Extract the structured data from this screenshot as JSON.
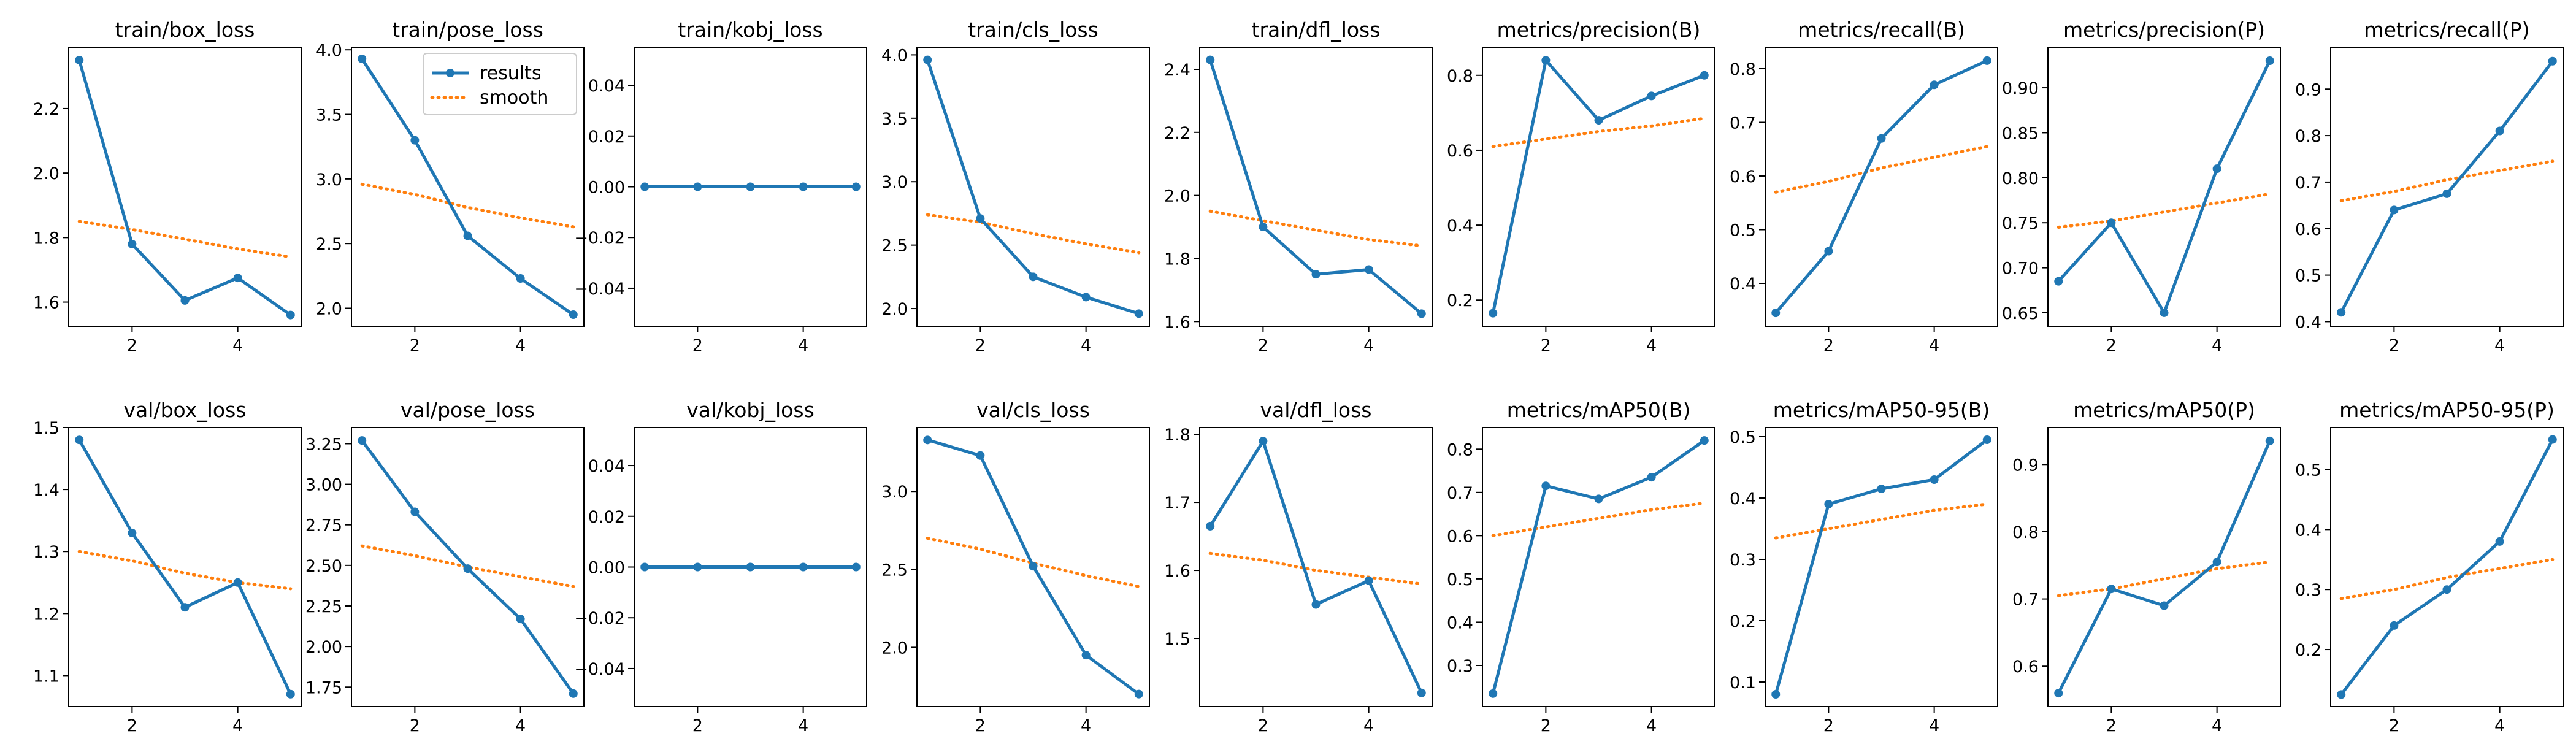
{
  "colors": {
    "results": "#1f77b4",
    "smooth": "#ff7f0e"
  },
  "legend": {
    "results": "results",
    "smooth": "smooth",
    "placement": "top-right",
    "panel": "train/pose_loss"
  },
  "chart_data": [
    {
      "type": "line",
      "title": "train/box_loss",
      "x": [
        1,
        2,
        3,
        4,
        5
      ],
      "series": [
        {
          "name": "results",
          "values": [
            2.35,
            1.78,
            1.605,
            1.675,
            1.56
          ]
        },
        {
          "name": "smooth",
          "values": [
            1.85,
            1.825,
            1.795,
            1.765,
            1.74
          ]
        }
      ],
      "xlim": [
        0.8,
        5.2
      ],
      "ylim": [
        1.525,
        2.39
      ],
      "xticks": [
        2,
        4
      ],
      "yticks": [
        1.6,
        1.8,
        2.0,
        2.2
      ],
      "yticklabels": [
        "1.6",
        "1.8",
        "2.0",
        "2.2"
      ],
      "grid": false
    },
    {
      "type": "line",
      "title": "train/pose_loss",
      "x": [
        1,
        2,
        3,
        4,
        5
      ],
      "series": [
        {
          "name": "results",
          "values": [
            3.93,
            3.3,
            2.56,
            2.23,
            1.95
          ]
        },
        {
          "name": "smooth",
          "values": [
            2.96,
            2.88,
            2.78,
            2.7,
            2.63
          ]
        }
      ],
      "xlim": [
        0.8,
        5.2
      ],
      "ylim": [
        1.86,
        4.02
      ],
      "xticks": [
        2,
        4
      ],
      "yticks": [
        2.0,
        2.5,
        3.0,
        3.5,
        4.0
      ],
      "yticklabels": [
        "2.0",
        "2.5",
        "3.0",
        "3.5",
        "4.0"
      ],
      "grid": false
    },
    {
      "type": "line",
      "title": "train/kobj_loss",
      "x": [
        1,
        2,
        3,
        4,
        5
      ],
      "series": [
        {
          "name": "results",
          "values": [
            0,
            0,
            0,
            0,
            0
          ]
        },
        {
          "name": "smooth",
          "values": [
            0,
            0,
            0,
            0,
            0
          ]
        }
      ],
      "xlim": [
        0.8,
        5.2
      ],
      "ylim": [
        -0.055,
        0.055
      ],
      "xticks": [
        2,
        4
      ],
      "yticks": [
        -0.04,
        -0.02,
        0.0,
        0.02,
        0.04
      ],
      "yticklabels": [
        "−0.04",
        "−0.02",
        "0.00",
        "0.02",
        "0.04"
      ],
      "grid": false
    },
    {
      "type": "line",
      "title": "train/cls_loss",
      "x": [
        1,
        2,
        3,
        4,
        5
      ],
      "series": [
        {
          "name": "results",
          "values": [
            3.96,
            2.71,
            2.25,
            2.09,
            1.96
          ]
        },
        {
          "name": "smooth",
          "values": [
            2.74,
            2.68,
            2.59,
            2.51,
            2.44
          ]
        }
      ],
      "xlim": [
        0.8,
        5.2
      ],
      "ylim": [
        1.86,
        4.06
      ],
      "xticks": [
        2,
        4
      ],
      "yticks": [
        2.0,
        2.5,
        3.0,
        3.5,
        4.0
      ],
      "yticklabels": [
        "2.0",
        "2.5",
        "3.0",
        "3.5",
        "4.0"
      ],
      "grid": false
    },
    {
      "type": "line",
      "title": "train/dfl_loss",
      "x": [
        1,
        2,
        3,
        4,
        5
      ],
      "series": [
        {
          "name": "results",
          "values": [
            2.43,
            1.9,
            1.75,
            1.765,
            1.625
          ]
        },
        {
          "name": "smooth",
          "values": [
            1.95,
            1.92,
            1.89,
            1.86,
            1.84
          ]
        }
      ],
      "xlim": [
        0.8,
        5.2
      ],
      "ylim": [
        1.585,
        2.47
      ],
      "xticks": [
        2,
        4
      ],
      "yticks": [
        1.6,
        1.8,
        2.0,
        2.2,
        2.4
      ],
      "yticklabels": [
        "1.6",
        "1.8",
        "2.0",
        "2.2",
        "2.4"
      ],
      "grid": false
    },
    {
      "type": "line",
      "title": "metrics/precision(B)",
      "x": [
        1,
        2,
        3,
        4,
        5
      ],
      "series": [
        {
          "name": "results",
          "values": [
            0.165,
            0.84,
            0.68,
            0.745,
            0.8
          ]
        },
        {
          "name": "smooth",
          "values": [
            0.61,
            0.63,
            0.65,
            0.665,
            0.685
          ]
        }
      ],
      "xlim": [
        0.8,
        5.2
      ],
      "ylim": [
        0.13,
        0.875
      ],
      "xticks": [
        2,
        4
      ],
      "yticks": [
        0.2,
        0.4,
        0.6,
        0.8
      ],
      "yticklabels": [
        "0.2",
        "0.4",
        "0.6",
        "0.8"
      ],
      "grid": false
    },
    {
      "type": "line",
      "title": "metrics/recall(B)",
      "x": [
        1,
        2,
        3,
        4,
        5
      ],
      "series": [
        {
          "name": "results",
          "values": [
            0.345,
            0.46,
            0.67,
            0.77,
            0.815
          ]
        },
        {
          "name": "smooth",
          "values": [
            0.57,
            0.59,
            0.615,
            0.635,
            0.655
          ]
        }
      ],
      "xlim": [
        0.8,
        5.2
      ],
      "ylim": [
        0.32,
        0.84
      ],
      "xticks": [
        2,
        4
      ],
      "yticks": [
        0.4,
        0.5,
        0.6,
        0.7,
        0.8
      ],
      "yticklabels": [
        "0.4",
        "0.5",
        "0.6",
        "0.7",
        "0.8"
      ],
      "grid": false
    },
    {
      "type": "line",
      "title": "metrics/precision(P)",
      "x": [
        1,
        2,
        3,
        4,
        5
      ],
      "series": [
        {
          "name": "results",
          "values": [
            0.685,
            0.75,
            0.65,
            0.81,
            0.93
          ]
        },
        {
          "name": "smooth",
          "values": [
            0.745,
            0.752,
            0.762,
            0.772,
            0.782
          ]
        }
      ],
      "xlim": [
        0.8,
        5.2
      ],
      "ylim": [
        0.635,
        0.945
      ],
      "xticks": [
        2,
        4
      ],
      "yticks": [
        0.65,
        0.7,
        0.75,
        0.8,
        0.85,
        0.9
      ],
      "yticklabels": [
        "0.65",
        "0.70",
        "0.75",
        "0.80",
        "0.85",
        "0.90"
      ],
      "grid": false
    },
    {
      "type": "line",
      "title": "metrics/recall(P)",
      "x": [
        1,
        2,
        3,
        4,
        5
      ],
      "series": [
        {
          "name": "results",
          "values": [
            0.42,
            0.64,
            0.675,
            0.81,
            0.96
          ]
        },
        {
          "name": "smooth",
          "values": [
            0.66,
            0.68,
            0.705,
            0.725,
            0.745
          ]
        }
      ],
      "xlim": [
        0.8,
        5.2
      ],
      "ylim": [
        0.39,
        0.99
      ],
      "xticks": [
        2,
        4
      ],
      "yticks": [
        0.4,
        0.5,
        0.6,
        0.7,
        0.8,
        0.9
      ],
      "yticklabels": [
        "0.4",
        "0.5",
        "0.6",
        "0.7",
        "0.8",
        "0.9"
      ],
      "grid": false
    },
    {
      "type": "line",
      "title": "val/box_loss",
      "x": [
        1,
        2,
        3,
        4,
        5
      ],
      "series": [
        {
          "name": "results",
          "values": [
            1.48,
            1.33,
            1.21,
            1.25,
            1.07
          ]
        },
        {
          "name": "smooth",
          "values": [
            1.3,
            1.285,
            1.265,
            1.25,
            1.24
          ]
        }
      ],
      "xlim": [
        0.8,
        5.2
      ],
      "ylim": [
        1.05,
        1.5
      ],
      "xticks": [
        2,
        4
      ],
      "yticks": [
        1.1,
        1.2,
        1.3,
        1.4,
        1.5
      ],
      "yticklabels": [
        "1.1",
        "1.2",
        "1.3",
        "1.4",
        "1.5"
      ],
      "grid": false
    },
    {
      "type": "line",
      "title": "val/pose_loss",
      "x": [
        1,
        2,
        3,
        4,
        5
      ],
      "series": [
        {
          "name": "results",
          "values": [
            3.27,
            2.83,
            2.48,
            2.17,
            1.71
          ]
        },
        {
          "name": "smooth",
          "values": [
            2.62,
            2.56,
            2.49,
            2.43,
            2.37
          ]
        }
      ],
      "xlim": [
        0.8,
        5.2
      ],
      "ylim": [
        1.63,
        3.35
      ],
      "xticks": [
        2,
        4
      ],
      "yticks": [
        1.75,
        2.0,
        2.25,
        2.5,
        2.75,
        3.0,
        3.25
      ],
      "yticklabels": [
        "1.75",
        "2.00",
        "2.25",
        "2.50",
        "2.75",
        "3.00",
        "3.25"
      ],
      "grid": false
    },
    {
      "type": "line",
      "title": "val/kobj_loss",
      "x": [
        1,
        2,
        3,
        4,
        5
      ],
      "series": [
        {
          "name": "results",
          "values": [
            0,
            0,
            0,
            0,
            0
          ]
        },
        {
          "name": "smooth",
          "values": [
            0,
            0,
            0,
            0,
            0
          ]
        }
      ],
      "xlim": [
        0.8,
        5.2
      ],
      "ylim": [
        -0.055,
        0.055
      ],
      "xticks": [
        2,
        4
      ],
      "yticks": [
        -0.04,
        -0.02,
        0.0,
        0.02,
        0.04
      ],
      "yticklabels": [
        "−0.04",
        "−0.02",
        "0.00",
        "0.02",
        "0.04"
      ],
      "grid": false
    },
    {
      "type": "line",
      "title": "val/cls_loss",
      "x": [
        1,
        2,
        3,
        4,
        5
      ],
      "series": [
        {
          "name": "results",
          "values": [
            3.33,
            3.23,
            2.52,
            1.95,
            1.7
          ]
        },
        {
          "name": "smooth",
          "values": [
            2.7,
            2.63,
            2.54,
            2.46,
            2.39
          ]
        }
      ],
      "xlim": [
        0.8,
        5.2
      ],
      "ylim": [
        1.62,
        3.41
      ],
      "xticks": [
        2,
        4
      ],
      "yticks": [
        2.0,
        2.5,
        3.0
      ],
      "yticklabels": [
        "2.0",
        "2.5",
        "3.0"
      ],
      "grid": false
    },
    {
      "type": "line",
      "title": "val/dfl_loss",
      "x": [
        1,
        2,
        3,
        4,
        5
      ],
      "series": [
        {
          "name": "results",
          "values": [
            1.665,
            1.79,
            1.55,
            1.585,
            1.42
          ]
        },
        {
          "name": "smooth",
          "values": [
            1.625,
            1.615,
            1.6,
            1.59,
            1.58
          ]
        }
      ],
      "xlim": [
        0.8,
        5.2
      ],
      "ylim": [
        1.4,
        1.81
      ],
      "xticks": [
        2,
        4
      ],
      "yticks": [
        1.5,
        1.6,
        1.7,
        1.8
      ],
      "yticklabels": [
        "1.5",
        "1.6",
        "1.7",
        "1.8"
      ],
      "grid": false
    },
    {
      "type": "line",
      "title": "metrics/mAP50(B)",
      "x": [
        1,
        2,
        3,
        4,
        5
      ],
      "series": [
        {
          "name": "results",
          "values": [
            0.235,
            0.715,
            0.685,
            0.735,
            0.82
          ]
        },
        {
          "name": "smooth",
          "values": [
            0.6,
            0.62,
            0.64,
            0.66,
            0.675
          ]
        }
      ],
      "xlim": [
        0.8,
        5.2
      ],
      "ylim": [
        0.205,
        0.85
      ],
      "xticks": [
        2,
        4
      ],
      "yticks": [
        0.3,
        0.4,
        0.5,
        0.6,
        0.7,
        0.8
      ],
      "yticklabels": [
        "0.3",
        "0.4",
        "0.5",
        "0.6",
        "0.7",
        "0.8"
      ],
      "grid": false
    },
    {
      "type": "line",
      "title": "metrics/mAP50-95(B)",
      "x": [
        1,
        2,
        3,
        4,
        5
      ],
      "series": [
        {
          "name": "results",
          "values": [
            0.08,
            0.39,
            0.415,
            0.43,
            0.495
          ]
        },
        {
          "name": "smooth",
          "values": [
            0.335,
            0.35,
            0.365,
            0.38,
            0.39
          ]
        }
      ],
      "xlim": [
        0.8,
        5.2
      ],
      "ylim": [
        0.06,
        0.515
      ],
      "xticks": [
        2,
        4
      ],
      "yticks": [
        0.1,
        0.2,
        0.3,
        0.4,
        0.5
      ],
      "yticklabels": [
        "0.1",
        "0.2",
        "0.3",
        "0.4",
        "0.5"
      ],
      "grid": false
    },
    {
      "type": "line",
      "title": "metrics/mAP50(P)",
      "x": [
        1,
        2,
        3,
        4,
        5
      ],
      "series": [
        {
          "name": "results",
          "values": [
            0.56,
            0.715,
            0.69,
            0.755,
            0.935
          ]
        },
        {
          "name": "smooth",
          "values": [
            0.705,
            0.715,
            0.73,
            0.745,
            0.755
          ]
        }
      ],
      "xlim": [
        0.8,
        5.2
      ],
      "ylim": [
        0.54,
        0.955
      ],
      "xticks": [
        2,
        4
      ],
      "yticks": [
        0.6,
        0.7,
        0.8,
        0.9
      ],
      "yticklabels": [
        "0.6",
        "0.7",
        "0.8",
        "0.9"
      ],
      "grid": false
    },
    {
      "type": "line",
      "title": "metrics/mAP50-95(P)",
      "x": [
        1,
        2,
        3,
        4,
        5
      ],
      "series": [
        {
          "name": "results",
          "values": [
            0.125,
            0.24,
            0.3,
            0.38,
            0.55
          ]
        },
        {
          "name": "smooth",
          "values": [
            0.285,
            0.3,
            0.32,
            0.335,
            0.35
          ]
        }
      ],
      "xlim": [
        0.8,
        5.2
      ],
      "ylim": [
        0.105,
        0.57
      ],
      "xticks": [
        2,
        4
      ],
      "yticks": [
        0.2,
        0.3,
        0.4,
        0.5
      ],
      "yticklabels": [
        "0.2",
        "0.3",
        "0.4",
        "0.5"
      ],
      "grid": false
    }
  ]
}
